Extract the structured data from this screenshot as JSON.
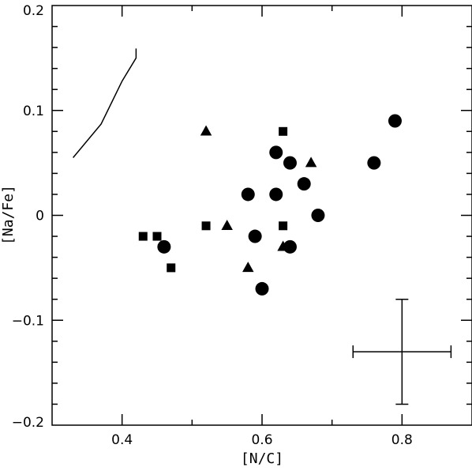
{
  "chart_data": {
    "type": "scatter",
    "xlabel": "[N/C]",
    "ylabel": "[Na/Fe]",
    "xlim": [
      0.3,
      0.9
    ],
    "ylim": [
      -0.2,
      0.2
    ],
    "grid": false,
    "x_ticks": [
      0.4,
      0.6,
      0.8
    ],
    "y_ticks": [
      -0.2,
      -0.1,
      0,
      0.1,
      0.2
    ],
    "x_tick_labels": [
      "0.4",
      "0.6",
      "0.8"
    ],
    "y_tick_labels": [
      "−0.2",
      "−0.1",
      "0",
      "0.1",
      "0.2"
    ],
    "series": [
      {
        "marker": "circle",
        "points": [
          [
            0.46,
            -0.03
          ],
          [
            0.58,
            0.02
          ],
          [
            0.59,
            -0.02
          ],
          [
            0.6,
            -0.07
          ],
          [
            0.62,
            0.06
          ],
          [
            0.62,
            0.02
          ],
          [
            0.64,
            0.05
          ],
          [
            0.64,
            -0.03
          ],
          [
            0.66,
            0.03
          ],
          [
            0.68,
            0.0
          ],
          [
            0.76,
            0.05
          ],
          [
            0.79,
            0.09
          ]
        ]
      },
      {
        "marker": "square",
        "points": [
          [
            0.43,
            -0.02
          ],
          [
            0.45,
            -0.02
          ],
          [
            0.47,
            -0.05
          ],
          [
            0.52,
            -0.01
          ],
          [
            0.63,
            0.08
          ],
          [
            0.63,
            -0.01
          ]
        ]
      },
      {
        "marker": "triangle",
        "points": [
          [
            0.52,
            0.08
          ],
          [
            0.55,
            -0.01
          ],
          [
            0.58,
            -0.05
          ],
          [
            0.63,
            -0.03
          ],
          [
            0.67,
            0.05
          ]
        ]
      }
    ],
    "curve": [
      [
        0.33,
        0.055
      ],
      [
        0.37,
        0.087
      ],
      [
        0.4,
        0.128
      ],
      [
        0.42,
        0.15
      ],
      [
        0.42,
        0.159
      ]
    ],
    "error_bar": {
      "x": 0.8,
      "y": -0.13,
      "x_err": 0.07,
      "y_err": 0.05
    }
  }
}
